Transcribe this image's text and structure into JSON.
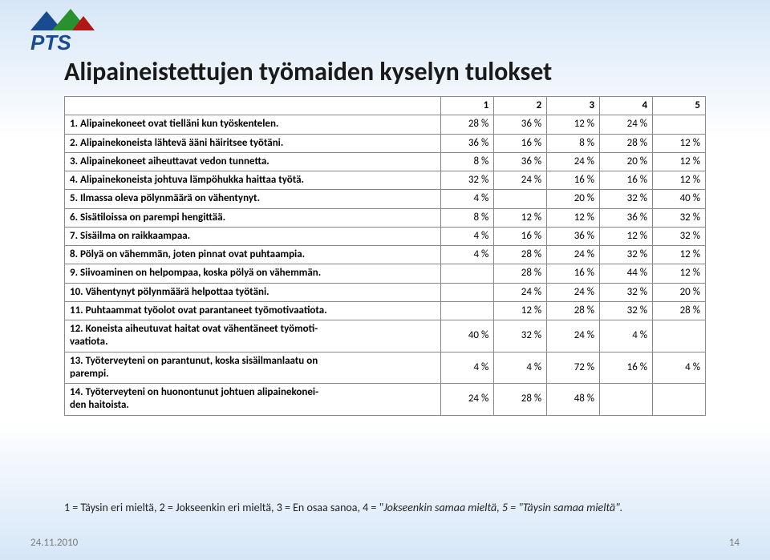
{
  "logo": {
    "text": "PTS",
    "text_color": "#1a4b90",
    "mountain_colors": [
      "#1a4b90",
      "#2a9030",
      "#b01818"
    ]
  },
  "title": "Alipaineistettujen työmaiden kyselyn tulokset",
  "table": {
    "columns": [
      "",
      "1",
      "2",
      "3",
      "4",
      "5"
    ],
    "rows": [
      {
        "q": "1. Alipainekoneet ovat tielläni kun työskentelen.",
        "v": [
          "28 %",
          "36 %",
          "12 %",
          "24 %",
          ""
        ]
      },
      {
        "q": "2. Alipainekoneista lähtevä ääni häiritsee työtäni.",
        "v": [
          "36 %",
          "16 %",
          "8 %",
          "28 %",
          "12 %"
        ]
      },
      {
        "q": "3. Alipainekoneet aiheuttavat vedon tunnetta.",
        "v": [
          "8 %",
          "36 %",
          "24 %",
          "20 %",
          "12 %"
        ]
      },
      {
        "q": "4. Alipainekoneista johtuva lämpöhukka haittaa työtä.",
        "v": [
          "32 %",
          "24 %",
          "16 %",
          "16 %",
          "12 %"
        ]
      },
      {
        "q": "5. Ilmassa oleva pölynmäärä on vähentynyt.",
        "v": [
          "4 %",
          "",
          "20 %",
          "32 %",
          "40 %"
        ]
      },
      {
        "q": "6. Sisätiloissa on parempi hengittää.",
        "v": [
          "8 %",
          "12 %",
          "12 %",
          "36 %",
          "32 %"
        ]
      },
      {
        "q": "7. Sisäilma on raikkaampaa.",
        "v": [
          "4 %",
          "16 %",
          "36 %",
          "12 %",
          "32 %"
        ]
      },
      {
        "q": "8. Pölyä on vähemmän, joten pinnat ovat puhtaampia.",
        "v": [
          "4 %",
          "28 %",
          "24 %",
          "32 %",
          "12 %"
        ]
      },
      {
        "q": "9. Siivoaminen on helpompaa, koska pölyä on vähemmän.",
        "v": [
          "",
          "28 %",
          "16 %",
          "44 %",
          "12 %"
        ]
      },
      {
        "q": "10. Vähentynyt pölynmäärä helpottaa työtäni.",
        "v": [
          "",
          "24 %",
          "24 %",
          "32 %",
          "20 %"
        ]
      },
      {
        "q": "11. Puhtaammat työolot ovat parantaneet työmotivaatiota.",
        "v": [
          "",
          "12 %",
          "28 %",
          "32 %",
          "28 %"
        ]
      },
      {
        "q": "12. Koneista aiheutuvat haitat ovat vähentäneet työmoti-\nvaatiota.",
        "v": [
          "40 %",
          "32 %",
          "24 %",
          "4 %",
          ""
        ]
      },
      {
        "q": "13. Työterveyteni on parantunut, koska sisäilmanlaatu on\nparempi.",
        "v": [
          "4 %",
          "4 %",
          "72 %",
          "16 %",
          "4 %"
        ]
      },
      {
        "q": "14. Työterveyteni on huonontunut johtuen alipainekonei-\nden haitoista.",
        "v": [
          "24 %",
          "28 %",
          "48 %",
          "",
          ""
        ]
      }
    ]
  },
  "legend": {
    "part1": "1 = Täysin eri mieltä, 2 = Jokseenkin eri mieltä, 3 = En osaa sanoa, 4 = ",
    "italic": "\"Jokseenkin samaa mieltä, 5 = \"Täysin samaa mieltä\".",
    "full_prefix": "1 = Täysin eri mieltä, 2 = Jokseenkin eri mieltä, 3 = En osaa sanoa, 4 = \"",
    "full_italic": "Jokseenkin samaa mieltä, 5 = \"Täysin samaa mieltä\"."
  },
  "footer": {
    "date": "24.11.2010",
    "page": "14"
  }
}
